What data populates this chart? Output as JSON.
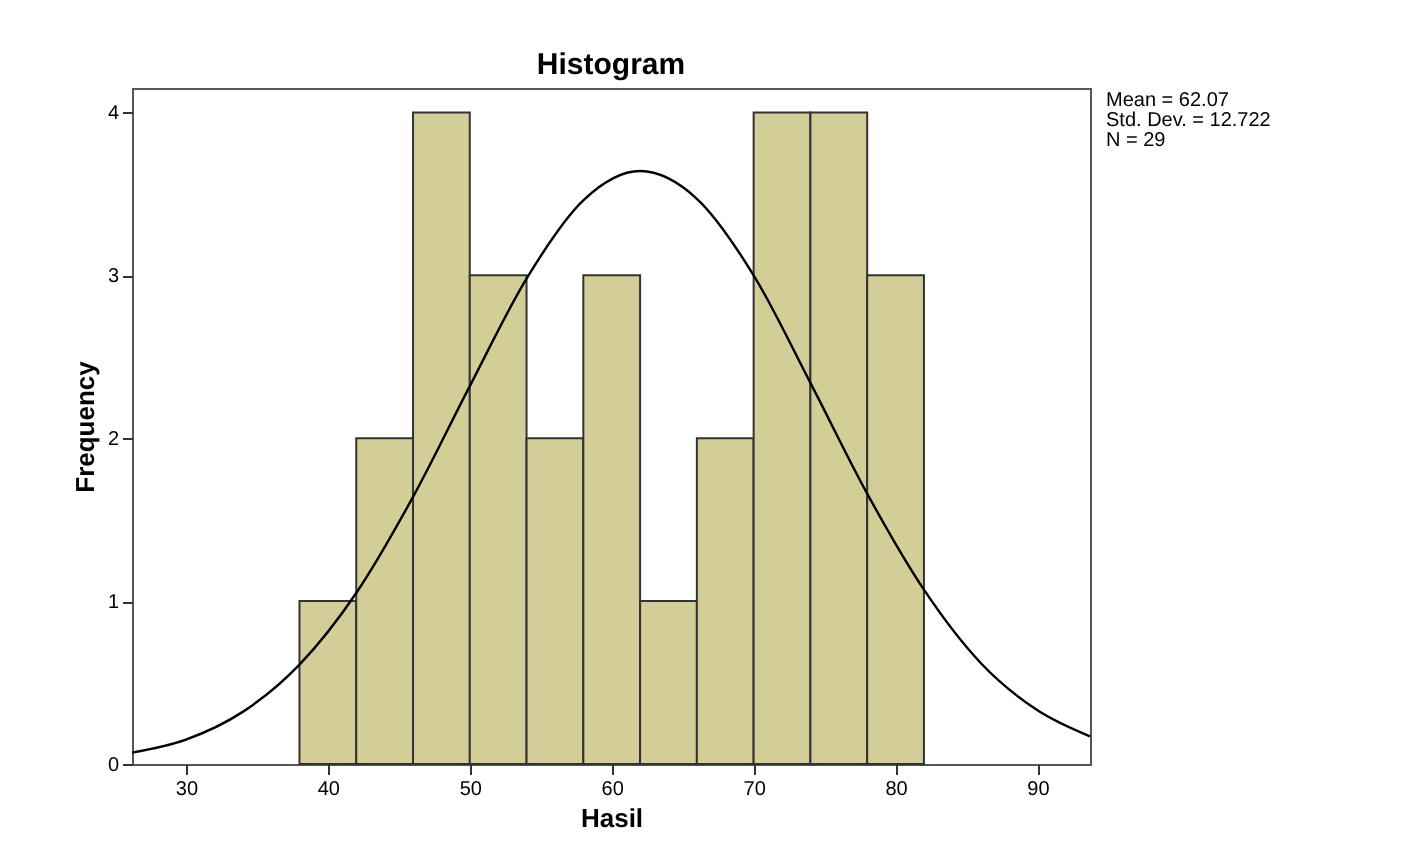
{
  "chart_data": {
    "type": "histogram",
    "title": "Histogram",
    "xlabel": "Hasil",
    "ylabel": "Frequency",
    "xlim": [
      26.2,
      93.7
    ],
    "xticks": [
      30,
      40,
      50,
      60,
      70,
      80,
      90
    ],
    "ylim": [
      0,
      4.15
    ],
    "yticks": [
      0,
      1,
      2,
      3,
      4
    ],
    "grid": false,
    "annotations": [
      "Mean = 62.07",
      "Std. Dev. = 12.722",
      "N = 29"
    ],
    "series": [
      {
        "color": "#d3ce98",
        "bins": [
          38,
          42,
          46,
          50,
          54,
          58,
          62,
          66,
          70,
          74,
          78,
          82
        ],
        "values": [
          1,
          2,
          4,
          3,
          2,
          3,
          1,
          2,
          4,
          4,
          3
        ]
      },
      {
        "type": "line",
        "color": "#000000",
        "x": [
          26.2,
          30,
          34,
          38,
          42,
          46,
          50,
          54,
          58,
          62,
          66,
          70,
          74,
          78,
          82,
          86,
          90,
          93.7
        ],
        "values": [
          0.07,
          0.15,
          0.32,
          0.61,
          1.05,
          1.64,
          2.32,
          2.98,
          3.46,
          3.64,
          3.47,
          3.0,
          2.34,
          1.66,
          1.07,
          0.62,
          0.33,
          0.17
        ]
      }
    ]
  }
}
